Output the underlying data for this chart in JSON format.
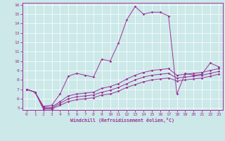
{
  "xlabel": "Windchill (Refroidissement éolien,°C)",
  "background_color": "#cce8e8",
  "line_color": "#993399",
  "xlim": [
    -0.5,
    23.5
  ],
  "ylim": [
    4.8,
    16.2
  ],
  "yticks": [
    5,
    6,
    7,
    8,
    9,
    10,
    11,
    12,
    13,
    14,
    15,
    16
  ],
  "xticks": [
    0,
    1,
    2,
    3,
    4,
    5,
    6,
    7,
    8,
    9,
    10,
    11,
    12,
    13,
    14,
    15,
    16,
    17,
    18,
    19,
    20,
    21,
    22,
    23
  ],
  "hours": [
    0,
    1,
    2,
    3,
    4,
    5,
    6,
    7,
    8,
    9,
    10,
    11,
    12,
    13,
    14,
    15,
    16,
    17,
    18,
    19,
    20,
    21,
    22,
    23
  ],
  "temp": [
    7.0,
    6.7,
    5.2,
    5.3,
    6.5,
    8.4,
    8.7,
    8.5,
    8.3,
    10.2,
    10.0,
    11.9,
    14.4,
    15.8,
    15.0,
    15.2,
    15.2,
    14.8,
    6.5,
    8.7,
    8.5,
    8.6,
    9.8,
    9.4
  ],
  "line2": [
    7.0,
    6.7,
    5.1,
    5.1,
    5.7,
    6.3,
    6.5,
    6.6,
    6.7,
    7.1,
    7.3,
    7.6,
    8.1,
    8.5,
    8.8,
    9.0,
    9.1,
    9.2,
    8.5,
    8.6,
    8.7,
    8.8,
    9.0,
    9.2
  ],
  "line3": [
    7.0,
    6.7,
    5.0,
    5.0,
    5.5,
    6.0,
    6.2,
    6.3,
    6.4,
    6.7,
    6.9,
    7.2,
    7.6,
    8.0,
    8.3,
    8.5,
    8.6,
    8.7,
    8.2,
    8.3,
    8.4,
    8.5,
    8.7,
    8.9
  ],
  "line4": [
    7.0,
    6.7,
    4.9,
    4.9,
    5.3,
    5.7,
    5.9,
    6.0,
    6.1,
    6.4,
    6.5,
    6.8,
    7.2,
    7.5,
    7.8,
    8.0,
    8.1,
    8.2,
    7.9,
    8.0,
    8.1,
    8.2,
    8.4,
    8.6
  ]
}
